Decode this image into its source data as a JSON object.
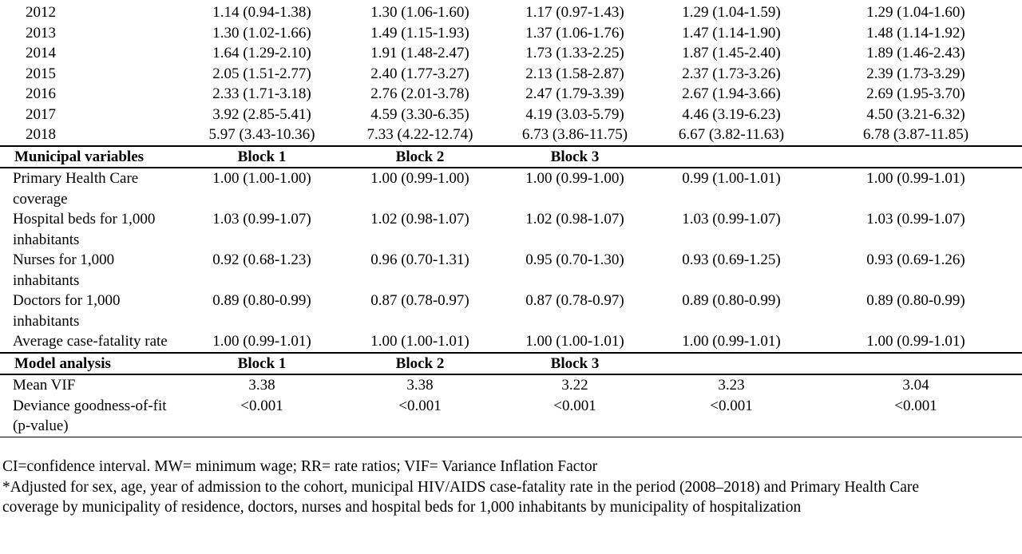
{
  "year_rows": [
    {
      "label": "2012",
      "values": [
        "1.14 (0.94-1.38)",
        "1.30 (1.06-1.60)",
        "1.17 (0.97-1.43)",
        "1.29 (1.04-1.59)",
        "1.29 (1.04-1.60)"
      ]
    },
    {
      "label": "2013",
      "values": [
        "1.30 (1.02-1.66)",
        "1.49 (1.15-1.93)",
        "1.37 (1.06-1.76)",
        "1.47 (1.14-1.90)",
        "1.48 (1.14-1.92)"
      ]
    },
    {
      "label": "2014",
      "values": [
        "1.64 (1.29-2.10)",
        "1.91 (1.48-2.47)",
        "1.73 (1.33-2.25)",
        "1.87 (1.45-2.40)",
        "1.89 (1.46-2.43)"
      ]
    },
    {
      "label": "2015",
      "values": [
        "2.05 (1.51-2.77)",
        "2.40 (1.77-3.27)",
        "2.13 (1.58-2.87)",
        "2.37 (1.73-3.26)",
        "2.39 (1.73-3.29)"
      ]
    },
    {
      "label": "2016",
      "values": [
        "2.33 (1.71-3.18)",
        "2.76 (2.01-3.78)",
        "2.47 (1.79-3.39)",
        "2.67 (1.94-3.66)",
        "2.69 (1.95-3.70)"
      ]
    },
    {
      "label": "2017",
      "values": [
        "3.92 (2.85-5.41)",
        "4.59 (3.30-6.35)",
        "4.19 (3.03-5.79)",
        "4.46 (3.19-6.23)",
        "4.50 (3.21-6.32)"
      ]
    },
    {
      "label": "2018",
      "values": [
        "5.97 (3.43-10.36)",
        "7.33 (4.22-12.74)",
        "6.73 (3.86-11.75)",
        "6.67 (3.82-11.63)",
        "6.78 (3.87-11.85)"
      ]
    }
  ],
  "municipal": {
    "header": {
      "label": "Municipal variables",
      "block1": "Block 1",
      "block2": "Block 2",
      "block3": "Block 3"
    },
    "rows": [
      {
        "label": "Primary Health Care coverage",
        "values": [
          "1.00 (1.00-1.00)",
          "1.00 (0.99-1.00)",
          "1.00 (0.99-1.00)",
          "0.99 (1.00-1.01)",
          "1.00 (0.99-1.01)"
        ]
      },
      {
        "label": "Hospital beds for 1,000 inhabitants",
        "values": [
          "1.03 (0.99-1.07)",
          "1.02 (0.98-1.07)",
          "1.02 (0.98-1.07)",
          "1.03 (0.99-1.07)",
          "1.03 (0.99-1.07)"
        ]
      },
      {
        "label": "Nurses for 1,000 inhabitants",
        "values": [
          "0.92 (0.68-1.23)",
          "0.96 (0.70-1.31)",
          "0.95 (0.70-1.30)",
          "0.93 (0.69-1.25)",
          "0.93 (0.69-1.26)"
        ]
      },
      {
        "label": "Doctors for 1,000 inhabitants",
        "values": [
          "0.89 (0.80-0.99)",
          "0.87 (0.78-0.97)",
          "0.87 (0.78-0.97)",
          "0.89 (0.80-0.99)",
          "0.89 (0.80-0.99)"
        ]
      },
      {
        "label": "Average case-fatality rate",
        "values": [
          "1.00 (0.99-1.01)",
          "1.00 (1.00-1.01)",
          "1.00 (1.00-1.01)",
          "1.00 (0.99-1.01)",
          "1.00 (0.99-1.01)"
        ]
      }
    ]
  },
  "model": {
    "header": {
      "label": "Model analysis",
      "block1": "Block 1",
      "block2": "Block 2",
      "block3": "Block 3"
    },
    "rows": [
      {
        "label": "Mean VIF",
        "values": [
          "3.38",
          "3.38",
          "3.22",
          "3.23",
          "3.04"
        ]
      },
      {
        "label": "Deviance goodness-of-fit (p-value)",
        "values": [
          "<0.001",
          "<0.001",
          "<0.001",
          "<0.001",
          "<0.001"
        ]
      }
    ]
  },
  "notes": {
    "line1": "CI=confidence interval. MW= minimum wage; RR= rate ratios; VIF= Variance Inflation Factor",
    "line2": "*Adjusted for sex, age, year of admission to the cohort, municipal HIV/AIDS case-fatality rate in the period (2008–2018) and Primary Health Care coverage by municipality of residence, doctors, nurses and hospital beds for 1,000 inhabitants by municipality of hospitalization"
  }
}
